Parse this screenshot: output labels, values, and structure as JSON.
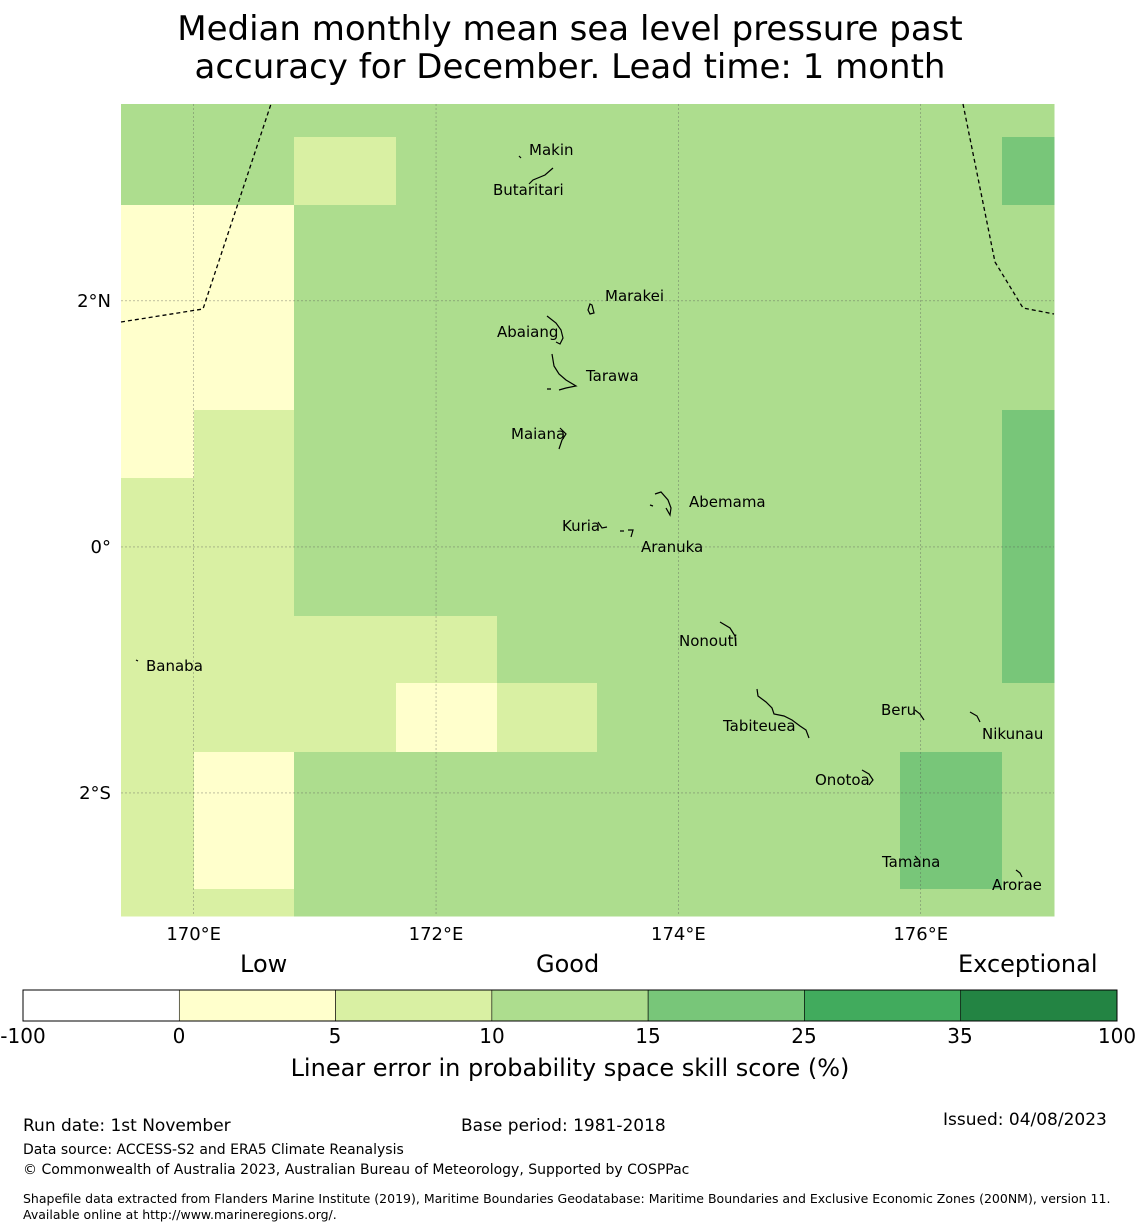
{
  "title": {
    "line1": "Median monthly mean sea level pressure past",
    "line2": "accuracy for December. Lead time: 1 month"
  },
  "map": {
    "lon_range": [
      169.4,
      177.1
    ],
    "lat_range": [
      -3.0,
      3.6
    ],
    "cell_size_deg": 0.833,
    "lon_ticks": [
      {
        "value": 170,
        "label": "170°E"
      },
      {
        "value": 172,
        "label": "172°E"
      },
      {
        "value": 174,
        "label": "174°E"
      },
      {
        "value": 176,
        "label": "176°E"
      }
    ],
    "lat_ticks": [
      {
        "value": 2,
        "label": "2°N"
      },
      {
        "value": 0,
        "label": "0°"
      },
      {
        "value": -2,
        "label": "2°S"
      }
    ],
    "skill_grid_lon_edges": [
      169.4,
      170.0,
      170.83,
      171.67,
      172.5,
      173.33,
      174.17,
      175.0,
      175.83,
      176.67,
      177.1
    ],
    "skill_grid_lat_edges": [
      3.6,
      3.33,
      2.78,
      2.5,
      1.67,
      1.11,
      0.56,
      0.0,
      -0.56,
      -1.11,
      -1.67,
      -2.22,
      -2.78,
      -3.0
    ],
    "skill_grid_categories": [
      [
        3,
        3,
        3,
        3,
        3,
        3,
        3,
        3,
        3,
        3
      ],
      [
        3,
        3,
        2,
        3,
        3,
        3,
        3,
        3,
        3,
        4
      ],
      [
        1,
        1,
        3,
        3,
        3,
        3,
        3,
        3,
        3,
        3
      ],
      [
        1,
        1,
        3,
        3,
        3,
        3,
        3,
        3,
        3,
        3
      ],
      [
        1,
        1,
        3,
        3,
        3,
        3,
        3,
        3,
        3,
        3
      ],
      [
        1,
        2,
        3,
        3,
        3,
        3,
        3,
        3,
        3,
        4
      ],
      [
        2,
        2,
        3,
        3,
        3,
        3,
        3,
        3,
        3,
        4
      ],
      [
        2,
        2,
        3,
        3,
        3,
        3,
        3,
        3,
        3,
        4
      ],
      [
        2,
        2,
        2,
        2,
        3,
        3,
        3,
        3,
        3,
        4
      ],
      [
        2,
        2,
        2,
        1,
        2,
        3,
        3,
        3,
        3,
        3
      ],
      [
        2,
        1,
        3,
        3,
        3,
        3,
        3,
        3,
        4,
        3
      ],
      [
        2,
        1,
        3,
        3,
        3,
        3,
        3,
        3,
        4,
        3
      ],
      [
        2,
        2,
        3,
        3,
        3,
        3,
        3,
        3,
        3,
        3
      ]
    ],
    "islands": [
      {
        "name": "Makin",
        "lon": 172.95,
        "lat": 3.35
      },
      {
        "name": "Butaritari",
        "lon": 172.8,
        "lat": 3.05
      },
      {
        "name": "Marakei",
        "lon": 173.3,
        "lat": 2.0
      },
      {
        "name": "Abaiang",
        "lon": 173.0,
        "lat": 1.85
      },
      {
        "name": "Tarawa",
        "lon": 173.0,
        "lat": 1.4
      },
      {
        "name": "Maiana",
        "lon": 173.0,
        "lat": 0.95
      },
      {
        "name": "Abemama",
        "lon": 173.85,
        "lat": 0.4
      },
      {
        "name": "Kuria",
        "lon": 173.4,
        "lat": 0.22
      },
      {
        "name": "Aranuka",
        "lon": 173.6,
        "lat": 0.16
      },
      {
        "name": "Nonouti",
        "lon": 174.4,
        "lat": -0.65
      },
      {
        "name": "Banaba",
        "lon": 169.54,
        "lat": -0.86
      },
      {
        "name": "Tabiteuea",
        "lon": 174.8,
        "lat": -1.35
      },
      {
        "name": "Beru",
        "lon": 176.0,
        "lat": -1.33
      },
      {
        "name": "Nikunau",
        "lon": 176.45,
        "lat": -1.38
      },
      {
        "name": "Onotoa",
        "lon": 175.55,
        "lat": -1.8
      },
      {
        "name": "Tamana",
        "lon": 175.98,
        "lat": -2.5
      },
      {
        "name": "Arorae",
        "lon": 176.82,
        "lat": -2.65
      }
    ]
  },
  "colorbar": {
    "categories": [
      {
        "from": -100,
        "to": 0,
        "color": "#ffffff"
      },
      {
        "from": 0,
        "to": 5,
        "color": "#ffffcc"
      },
      {
        "from": 5,
        "to": 10,
        "color": "#d9f0a3"
      },
      {
        "from": 10,
        "to": 15,
        "color": "#addd8e"
      },
      {
        "from": 15,
        "to": 25,
        "color": "#78c679"
      },
      {
        "from": 25,
        "to": 35,
        "color": "#41ab5d"
      },
      {
        "from": 35,
        "to": 100,
        "color": "#238443"
      }
    ],
    "tick_labels": [
      "-100",
      "0",
      "5",
      "10",
      "15",
      "25",
      "35",
      "100"
    ],
    "label_low": "Low",
    "label_good": "Good",
    "label_exceptional": "Exceptional",
    "title": "Linear error in probability space skill score (%)"
  },
  "footer": {
    "run_date": "Run date: 1st November",
    "base_period": "Base period: 1981-2018",
    "issued": "Issued: 04/08/2023",
    "data_source": "Data source: ACCESS-S2 and ERA5 Climate Reanalysis",
    "copyright": "© Commonwealth of Australia 2023, Australian Bureau of Meteorology, Supported by COSPPac",
    "shapefile": "Shapefile data extracted from Flanders Marine Institute (2019), Maritime Boundaries Geodatabase: Maritime Boundaries and Exclusive Economic Zones (200NM), version 11. Available online at http://www.marineregions.org/."
  }
}
